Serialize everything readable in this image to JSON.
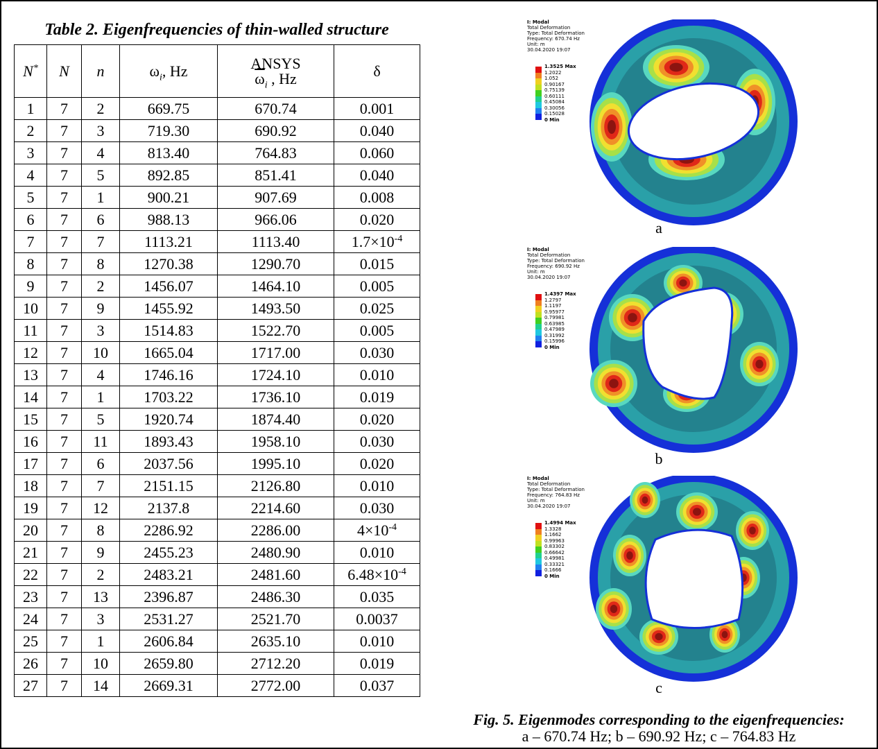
{
  "table": {
    "title": "Table 2. Eigenfrequencies of thin-walled structure",
    "headers": [
      {
        "text": "N",
        "sup": "*"
      },
      {
        "text": "N"
      },
      {
        "text": "n"
      },
      {
        "text": "ω",
        "sub": "i",
        "after": ", Hz"
      },
      {
        "top": "ANSYS",
        "text": "ω",
        "sub": "i",
        "after": " , Hz"
      },
      {
        "text": "δ"
      }
    ],
    "rows": [
      [
        "1",
        "7",
        "2",
        "669.75",
        "670.74",
        "0.001"
      ],
      [
        "2",
        "7",
        "3",
        "719.30",
        "690.92",
        "0.040"
      ],
      [
        "3",
        "7",
        "4",
        "813.40",
        "764.83",
        "0.060"
      ],
      [
        "4",
        "7",
        "5",
        "892.85",
        "851.41",
        "0.040"
      ],
      [
        "5",
        "7",
        "1",
        "900.21",
        "907.69",
        "0.008"
      ],
      [
        "6",
        "7",
        "6",
        "988.13",
        "966.06",
        "0.020"
      ],
      [
        "7",
        "7",
        "7",
        "1113.21",
        "1113.40",
        {
          "text": "1.7×10",
          "sup": "-4"
        }
      ],
      [
        "8",
        "7",
        "8",
        "1270.38",
        "1290.70",
        "0.015"
      ],
      [
        "9",
        "7",
        "2",
        "1456.07",
        "1464.10",
        "0.005"
      ],
      [
        "10",
        "7",
        "9",
        "1455.92",
        "1493.50",
        "0.025"
      ],
      [
        "11",
        "7",
        "3",
        "1514.83",
        "1522.70",
        "0.005"
      ],
      [
        "12",
        "7",
        "10",
        "1665.04",
        "1717.00",
        "0.030"
      ],
      [
        "13",
        "7",
        "4",
        "1746.16",
        "1724.10",
        "0.010"
      ],
      [
        "14",
        "7",
        "1",
        "1703.22",
        "1736.10",
        "0.019"
      ],
      [
        "15",
        "7",
        "5",
        "1920.74",
        "1874.40",
        "0.020"
      ],
      [
        "16",
        "7",
        "11",
        "1893.43",
        "1958.10",
        "0.030"
      ],
      [
        "17",
        "7",
        "6",
        "2037.56",
        "1995.10",
        "0.020"
      ],
      [
        "18",
        "7",
        "7",
        "2151.15",
        "2126.80",
        "0.010"
      ],
      [
        "19",
        "7",
        "12",
        "2137.8",
        "2214.60",
        "0.030"
      ],
      [
        "20",
        "7",
        "8",
        "2286.92",
        "2286.00",
        {
          "text": "4×10",
          "sup": "-4"
        }
      ],
      [
        "21",
        "7",
        "9",
        "2455.23",
        "2480.90",
        "0.010"
      ],
      [
        "22",
        "7",
        "2",
        "2483.21",
        "2481.60",
        {
          "text": "6.48×10",
          "sup": "-4"
        }
      ],
      [
        "23",
        "7",
        "13",
        "2396.87",
        "2486.30",
        "0.035"
      ],
      [
        "24",
        "7",
        "3",
        "2531.27",
        "2521.70",
        "0.0037"
      ],
      [
        "25",
        "7",
        "1",
        "2606.84",
        "2635.10",
        "0.010"
      ],
      [
        "26",
        "7",
        "10",
        "2659.80",
        "2712.20",
        "0.019"
      ],
      [
        "27",
        "7",
        "14",
        "2669.31",
        "2772.00",
        "0.037"
      ]
    ]
  },
  "figures": [
    {
      "label": "a",
      "info": [
        "I: Modal",
        "Total Deformation",
        "Type: Total Deformation",
        "Frequency: 670.74 Hz",
        "Unit: m",
        "30.04.2020 19:07"
      ],
      "legend": [
        "1.3525 Max",
        "1.2022",
        "1.052",
        "0.90167",
        "0.75139",
        "0.60111",
        "0.45084",
        "0.30056",
        "0.15028",
        "0 Min"
      ]
    },
    {
      "label": "b",
      "info": [
        "I: Modal",
        "Total Deformation",
        "Type: Total Deformation",
        "Frequency: 690.92 Hz",
        "Unit: m",
        "30.04.2020 19:07"
      ],
      "legend": [
        "1.4397 Max",
        "1.2797",
        "1.1197",
        "0.95977",
        "0.79981",
        "0.63985",
        "0.47989",
        "0.31992",
        "0.15996",
        "0 Min"
      ]
    },
    {
      "label": "c",
      "info": [
        "I: Modal",
        "Total Deformation",
        "Type: Total Deformation",
        "Frequency: 764.83 Hz",
        "Unit: m",
        "30.04.2020 19:07"
      ],
      "legend": [
        "1.4994 Max",
        "1.3328",
        "1.1662",
        "0.99963",
        "0.83302",
        "0.66642",
        "0.49981",
        "0.33321",
        "0.1666",
        "0 Min"
      ]
    }
  ],
  "caption": {
    "title": "Fig. 5. Eigenmodes corresponding to the eigenfrequencies:",
    "text": "a – 670.74 Hz; b – 690.92 Hz; c – 764.83 Hz"
  }
}
